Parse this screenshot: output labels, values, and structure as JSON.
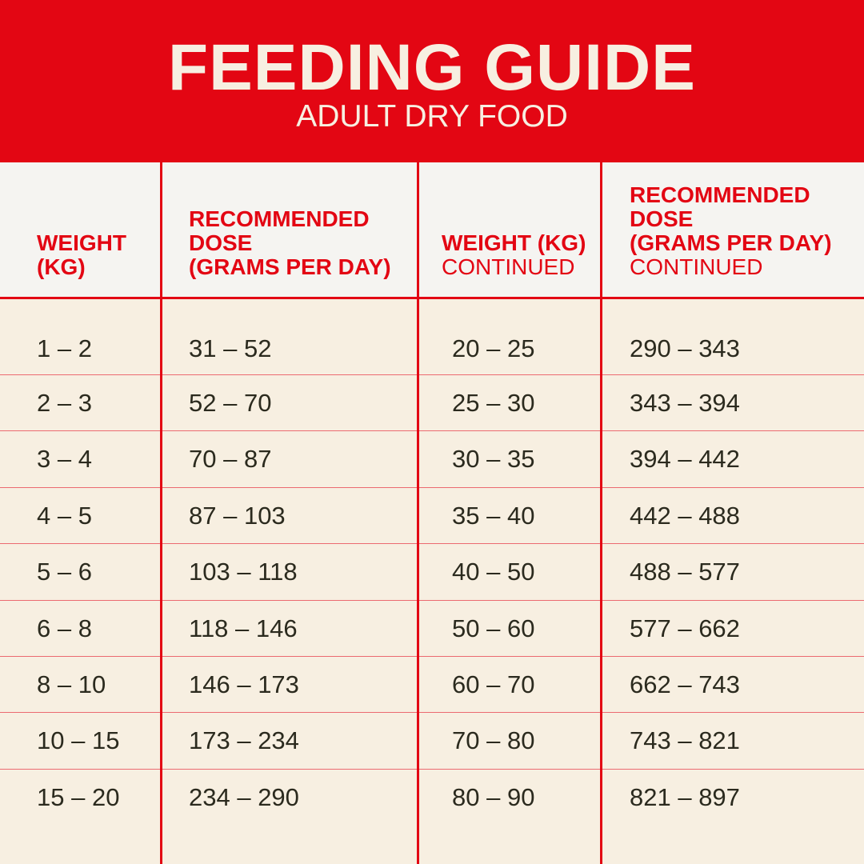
{
  "header": {
    "title": "FEEDING GUIDE",
    "subtitle": "ADULT DRY FOOD"
  },
  "columns": [
    {
      "label": "WEIGHT\n(KG)",
      "sub": ""
    },
    {
      "label": "RECOMMENDED\nDOSE\n(GRAMS PER DAY)",
      "sub": ""
    },
    {
      "label": "WEIGHT (KG)",
      "sub": "CONTINUED"
    },
    {
      "label": "RECOMMENDED\nDOSE\n(GRAMS PER DAY)",
      "sub": "CONTINUED"
    }
  ],
  "rows": [
    [
      "1 – 2",
      "31 – 52",
      "20 – 25",
      "290 – 343"
    ],
    [
      "2 – 3",
      "52 – 70",
      "25 – 30",
      "343 – 394"
    ],
    [
      "3 – 4",
      "70 – 87",
      "30 – 35",
      "394 – 442"
    ],
    [
      "4 – 5",
      "87 – 103",
      "35 – 40",
      "442 – 488"
    ],
    [
      "5 – 6",
      "103 – 118",
      "40 – 50",
      "488 – 577"
    ],
    [
      "6 – 8",
      "118 – 146",
      "50 – 60",
      "577 – 662"
    ],
    [
      "8 – 10",
      "146 – 173",
      "60 – 70",
      "662 – 743"
    ],
    [
      "10 – 15",
      "173 – 234",
      "70 – 80",
      "743 – 821"
    ],
    [
      "15 – 20",
      "234 – 290",
      "80 – 90",
      "821 – 897"
    ]
  ],
  "colors": {
    "red": "#e30613",
    "cream": "#f7efe1",
    "text": "#2b2a1e"
  }
}
